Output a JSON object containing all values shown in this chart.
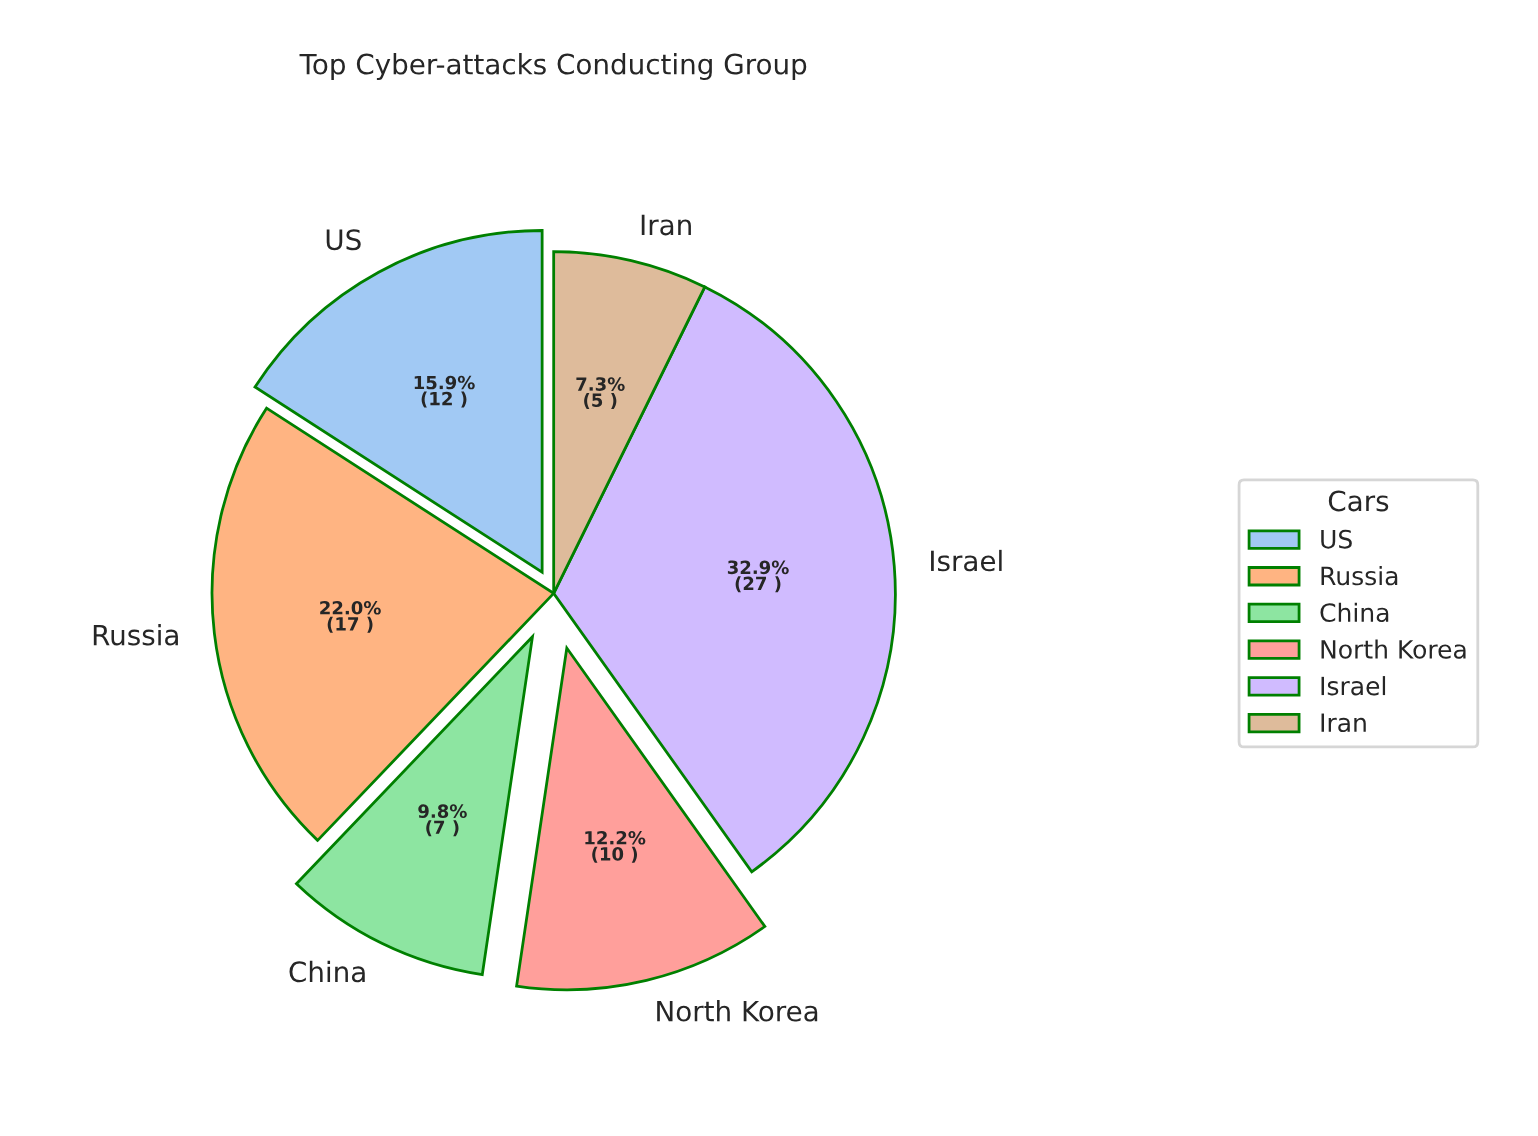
{
  "chart_data": {
    "type": "pie",
    "title": "Top Cyber-attacks Conducting Group",
    "categories": [
      "US",
      "Russia",
      "China",
      "North Korea",
      "Israel",
      "Iran"
    ],
    "values": [
      15.9,
      22.0,
      9.8,
      12.2,
      32.9,
      7.3
    ],
    "value_labels": [
      "15.9%\n(12 )",
      "22.0%\n(17 )",
      "9.8%\n(7 )",
      "12.2%\n(10 )",
      "32.9%\n(27 )",
      "7.3%\n(5 )"
    ],
    "colors": [
      "#a1c9f4",
      "#ffb482",
      "#8de5a1",
      "#ff9f9b",
      "#d0bbff",
      "#debb9b"
    ],
    "legend_title": "Cars",
    "legend": "right"
  }
}
